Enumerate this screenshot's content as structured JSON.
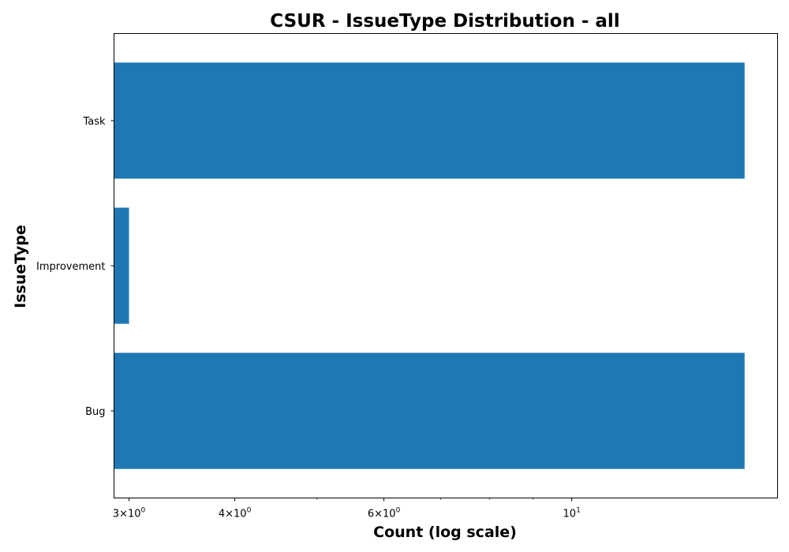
{
  "chart_data": {
    "type": "bar",
    "orientation": "horizontal",
    "title": "CSUR - IssueType Distribution - all",
    "xlabel": "Count (log scale)",
    "ylabel": "IssueType",
    "x_scale": "log",
    "xlim": [
      2.88,
      17.5
    ],
    "categories": [
      "Bug",
      "Improvement",
      "Task"
    ],
    "values": [
      16,
      3,
      16
    ],
    "x_major_ticks": [
      {
        "value": 3,
        "mantissa": "3",
        "exponent": "0"
      },
      {
        "value": 4,
        "mantissa": "4",
        "exponent": "0"
      },
      {
        "value": 6,
        "mantissa": "6",
        "exponent": "0"
      },
      {
        "value": 10,
        "mantissa": "",
        "exponent": "1"
      }
    ],
    "x_minor_ticks": [
      5,
      7,
      8,
      9
    ],
    "grid": false,
    "legend": "none",
    "bar_color": "#1f77b4"
  }
}
